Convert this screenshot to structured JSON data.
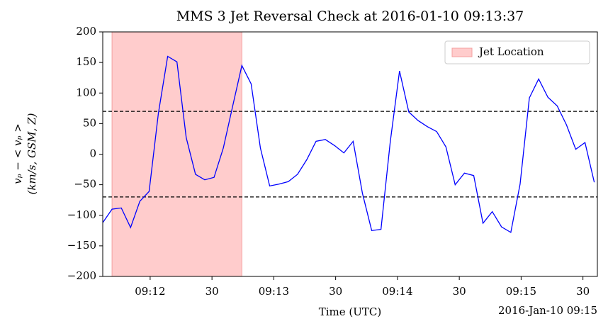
{
  "chart_data": {
    "type": "line",
    "title": "MMS 3 Jet Reversal Check at 2016-01-10 09:13:37",
    "xlabel": "Time (UTC)",
    "x_offset_label": "2016-Jan-10 09:15",
    "ylabel": [
      "vₚ − < vₚ >",
      "(km/s, GSM, Z)"
    ],
    "x": [
      "09:11:37.0",
      "09:11:41.5",
      "09:11:46.0",
      "09:11:50.5",
      "09:11:55.0",
      "09:11:59.5",
      "09:12:04.0",
      "09:12:08.5",
      "09:12:13.0",
      "09:12:17.5",
      "09:12:22.0",
      "09:12:26.5",
      "09:12:31.0",
      "09:12:35.5",
      "09:12:40.0",
      "09:12:44.5",
      "09:12:49.0",
      "09:12:53.5",
      "09:12:58.0",
      "09:13:02.5",
      "09:13:07.0",
      "09:13:11.5",
      "09:13:16.0",
      "09:13:20.5",
      "09:13:25.0",
      "09:13:29.5",
      "09:13:34.0",
      "09:13:38.5",
      "09:13:43.0",
      "09:13:47.5",
      "09:13:52.0",
      "09:13:56.5",
      "09:14:01.0",
      "09:14:05.5",
      "09:14:10.0",
      "09:14:14.5",
      "09:14:19.0",
      "09:14:23.5",
      "09:14:28.0",
      "09:14:32.5",
      "09:14:37.0",
      "09:14:41.5",
      "09:14:46.0",
      "09:14:50.5",
      "09:14:55.0",
      "09:14:59.5",
      "09:15:04.0",
      "09:15:08.5",
      "09:15:13.0",
      "09:15:17.5",
      "09:15:22.0",
      "09:15:26.5",
      "09:15:31.0",
      "09:15:35.5"
    ],
    "series": [
      {
        "name": "vp",
        "color": "#0000ff",
        "values": [
          -112,
          -90,
          -88,
          -120,
          -77,
          -61,
          67,
          160,
          151,
          27,
          -33,
          -42,
          -38,
          10,
          78,
          145,
          115,
          10,
          -52,
          -49,
          -45,
          -33,
          -9,
          21,
          24,
          14,
          2,
          21,
          -64,
          -125,
          -123,
          20,
          136,
          69,
          55,
          45,
          37,
          12,
          -50,
          -31,
          -35,
          -113,
          -94,
          -119,
          -128,
          -49,
          92,
          123,
          93,
          79,
          48,
          8,
          19,
          -46
        ]
      }
    ],
    "span": {
      "name": "Jet Location",
      "color": "#ffcccc",
      "edge": "#f4a0a0",
      "x": [
        "09:11:41.5",
        "09:12:44.5"
      ]
    },
    "hlines": [
      70,
      -70
    ],
    "xlim": [
      "09:11:37",
      "09:15:37"
    ],
    "xticks": [
      {
        "value": "09:12:00",
        "label": "09:12"
      },
      {
        "value": "09:12:30",
        "label": "30"
      },
      {
        "value": "09:13:00",
        "label": "09:13"
      },
      {
        "value": "09:13:30",
        "label": "30"
      },
      {
        "value": "09:14:00",
        "label": "09:14"
      },
      {
        "value": "09:14:30",
        "label": "30"
      },
      {
        "value": "09:15:00",
        "label": "09:15"
      },
      {
        "value": "09:15:30",
        "label": "30"
      }
    ],
    "ylim": [
      -200,
      200
    ],
    "yticks": [
      {
        "value": -200,
        "label": "−200"
      },
      {
        "value": -150,
        "label": "−150"
      },
      {
        "value": -100,
        "label": "−100"
      },
      {
        "value": -50,
        "label": "−50"
      },
      0,
      50,
      100,
      150,
      200
    ],
    "legend": "upper right"
  }
}
